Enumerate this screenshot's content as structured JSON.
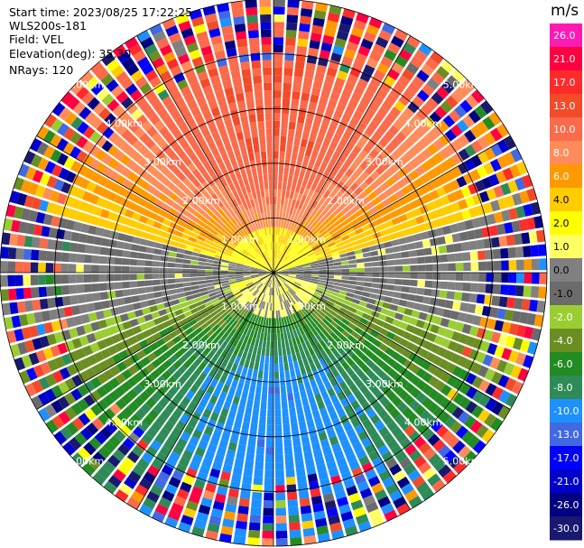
{
  "header": {
    "start_time": "Start time: 2023/08/25 17:22:25",
    "instrument": "WLS200s-181",
    "field": "Field: VEL",
    "elevation": "Elevation(deg): 35.30",
    "nrays": "NRays: 120"
  },
  "colorbar": {
    "unit": "m/s",
    "ticks": [
      "26.0",
      "21.0",
      "17.0",
      "13.0",
      "10.0",
      "8.0",
      "6.0",
      "4.0",
      "2.0",
      "1.0",
      "0.0",
      "-1.0",
      "-2.0",
      "-4.0",
      "-6.0",
      "-8.0",
      "-10.0",
      "-13.0",
      "-17.0",
      "-21.0",
      "-26.0",
      "-30.0"
    ],
    "colors": [
      "#ff1ab3",
      "#ff0040",
      "#ff2a2a",
      "#f24b2a",
      "#fb6a4a",
      "#ff8c5a",
      "#ff9900",
      "#ffcc00",
      "#ffff00",
      "#ffff66",
      "#808080",
      "#6b6b6b",
      "#9acd32",
      "#6b8e23",
      "#228b22",
      "#2e8b57",
      "#1e90ff",
      "#4169e1",
      "#0000ff",
      "#0000cd",
      "#000080",
      "#191970"
    ]
  },
  "chart_data": {
    "type": "heatmap",
    "projection": "polar PPI",
    "field": "VEL",
    "units": "m/s",
    "nrays": 120,
    "max_range_km": 5.0,
    "range_ring_labels": [
      "1.00km",
      "2.00km",
      "3.00km",
      "4.00km",
      "5.00km"
    ],
    "range_rings_km": [
      1,
      2,
      3,
      4,
      5
    ],
    "colorbar_range": [
      -30.0,
      26.0
    ],
    "velocity_pattern": [
      {
        "sector": "north",
        "range_km": [
          0.5,
          3.5
        ],
        "velocity_ms": 10
      },
      {
        "sector": "north-east/north-west",
        "range_km": [
          1.0,
          2.5
        ],
        "velocity_ms": 6
      },
      {
        "sector": "west-east near zenith",
        "range_km": [
          0.0,
          1.0
        ],
        "velocity_ms": 2
      },
      {
        "sector": "west/east",
        "range_km": [
          0.0,
          5.0
        ],
        "velocity_ms": 0
      },
      {
        "sector": "south-west/south-east",
        "range_km": [
          0.5,
          2.5
        ],
        "velocity_ms": -4
      },
      {
        "sector": "south",
        "range_km": [
          2.0,
          4.0
        ],
        "velocity_ms": -10
      },
      {
        "sector": "far range all azimuths",
        "range_km": [
          4.0,
          5.0
        ],
        "velocity_ms": "noise"
      }
    ]
  }
}
